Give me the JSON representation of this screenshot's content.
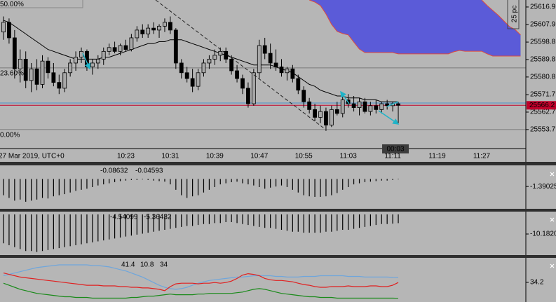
{
  "chart_data": [
    {
      "type": "candlestick",
      "date_label": "27 Mar 2019, UTC+0",
      "categories": [
        null,
        null,
        null,
        null,
        null,
        null,
        null,
        null,
        null,
        null,
        null,
        null,
        null,
        null,
        null,
        null,
        null,
        null,
        null,
        null,
        null,
        null,
        "10:23",
        null,
        null,
        null,
        null,
        null,
        null,
        null,
        "10:31",
        null,
        null,
        null,
        null,
        null,
        null,
        null,
        "10:39",
        null,
        null,
        null,
        null,
        null,
        null,
        null,
        "10:47",
        null,
        null,
        null,
        null,
        null,
        null,
        null,
        "10:55",
        null,
        null,
        null,
        null,
        null,
        null,
        null,
        "11:03",
        null,
        null,
        null,
        null,
        null,
        null,
        null,
        "11:11",
        null,
        null,
        null,
        null,
        null,
        null,
        null,
        "11:19",
        null,
        null,
        null,
        null,
        null,
        null,
        null,
        "11:27",
        null,
        null,
        null,
        null,
        null,
        null,
        null
      ],
      "open": [
        25604,
        25609,
        25601,
        25585,
        25590,
        25579,
        25585,
        25577,
        25589,
        25583,
        25578,
        25575,
        25583,
        25588,
        25591,
        25594,
        25586,
        25588,
        25590,
        25594,
        25596,
        25594,
        25597,
        25595,
        25601,
        25605,
        25603,
        25606,
        25605,
        25607,
        25609,
        25605,
        25588,
        25583,
        25580,
        25576,
        25583,
        25588,
        25590,
        25592,
        25594,
        25590,
        25584,
        25580,
        25575,
        25567,
        25583,
        25597,
        25593,
        25588,
        25586,
        25583,
        25585,
        25580,
        25574,
        25568,
        25564,
        25560,
        25563,
        25556,
        25564,
        25562,
        25569,
        25567,
        25565,
        25568,
        25563,
        25566,
        25564,
        25567,
        25566,
        25567,
        null,
        null,
        null,
        null,
        null,
        null,
        null,
        null,
        null,
        null,
        null,
        null,
        null,
        null,
        null,
        null,
        null,
        null,
        null,
        null,
        null,
        null
      ],
      "high": [
        25612,
        25611,
        25605,
        25595,
        25594,
        25588,
        25590,
        25592,
        25591,
        25588,
        25582,
        25585,
        25590,
        25594,
        25596,
        25595,
        25590,
        25592,
        25596,
        25598,
        25599,
        25598,
        25600,
        25603,
        25607,
        25608,
        25608,
        25609,
        25608,
        25611,
        25612,
        25606,
        25590,
        25586,
        25585,
        25585,
        25590,
        25592,
        25595,
        25596,
        25596,
        25592,
        25587,
        25582,
        25578,
        25585,
        25600,
        25601,
        25598,
        25595,
        25590,
        25586,
        25587,
        25582,
        25576,
        25570,
        25567,
        25566,
        25565,
        25566,
        25568,
        25572,
        25572,
        25571,
        25570,
        25570,
        25568,
        25569,
        25568,
        25569,
        25568,
        25568,
        null,
        null,
        null,
        null,
        null,
        null,
        null,
        null,
        null,
        null,
        null,
        null,
        null,
        null,
        null,
        null,
        null,
        null,
        null,
        null,
        null,
        null
      ],
      "low": [
        25600,
        25598,
        25580,
        25578,
        25575,
        25573,
        25574,
        25575,
        25580,
        25576,
        25572,
        25573,
        25581,
        25584,
        25588,
        25584,
        25582,
        25585,
        25587,
        25592,
        25593,
        25592,
        25594,
        25594,
        25599,
        25601,
        25601,
        25603,
        25601,
        25604,
        25603,
        25585,
        25580,
        25578,
        25573,
        25574,
        25581,
        25585,
        25587,
        25589,
        25588,
        25582,
        25578,
        25572,
        25565,
        25566,
        25580,
        25590,
        25585,
        25584,
        25581,
        25579,
        25578,
        25572,
        25565,
        25562,
        25558,
        25557,
        25553,
        25555,
        25561,
        25560,
        25565,
        25563,
        25561,
        25562,
        25561,
        25562,
        25562,
        25564,
        25563,
        25557,
        null,
        null,
        null,
        null,
        null,
        null,
        null,
        null,
        null,
        null,
        null,
        null,
        null,
        null,
        null,
        null,
        null,
        null,
        null,
        null,
        null,
        null
      ],
      "close": [
        25609,
        25601,
        25585,
        25590,
        25579,
        25585,
        25577,
        25589,
        25583,
        25578,
        25575,
        25583,
        25588,
        25591,
        25594,
        25586,
        25588,
        25590,
        25594,
        25596,
        25594,
        25597,
        25595,
        25601,
        25605,
        25603,
        25606,
        25605,
        25607,
        25609,
        25605,
        25588,
        25583,
        25580,
        25576,
        25583,
        25588,
        25590,
        25592,
        25594,
        25590,
        25584,
        25580,
        25575,
        25567,
        25583,
        25597,
        25593,
        25588,
        25586,
        25583,
        25585,
        25580,
        25574,
        25568,
        25564,
        25560,
        25563,
        25556,
        25564,
        25562,
        25569,
        25567,
        25565,
        25568,
        25563,
        25566,
        25564,
        25567,
        25566,
        25567,
        25566.2,
        null,
        null,
        null,
        null,
        null,
        null,
        null,
        null,
        null,
        null,
        null,
        null,
        null,
        null,
        null,
        null,
        null,
        null,
        null,
        null,
        null,
        null
      ],
      "up_color": "#a8a8a8",
      "down_color": "#000000",
      "ma": {
        "color": "#000000",
        "values": [
          25610,
          25609,
          25607,
          25605,
          25603,
          25601,
          25599,
          25597,
          25595,
          25594,
          25593,
          25592,
          25591,
          25590,
          25590,
          25590,
          25590,
          25590,
          25591,
          25591,
          25592,
          25593,
          25594,
          25595,
          25596,
          25597,
          25598,
          25598,
          25599,
          25599,
          25600,
          25600,
          25600,
          25599,
          25598,
          25597,
          25596,
          25595,
          25594,
          25593,
          25592,
          25591,
          25590,
          25589,
          25588,
          25587,
          25587,
          25587,
          25587,
          25586,
          25585,
          25584,
          25583,
          25581,
          25579,
          25577,
          25576,
          25574,
          25573,
          25572,
          25571,
          25571,
          25570,
          25570,
          25570,
          25569,
          25569,
          25569,
          25568,
          25568,
          25568,
          25568,
          null,
          null,
          null,
          null,
          null,
          null,
          null,
          null,
          null,
          null,
          null,
          null,
          null,
          null,
          null,
          null,
          null,
          null,
          null,
          null,
          null,
          null
        ]
      },
      "cloud": {
        "color": "#5b5bd8",
        "edge_color": "#e04a3c",
        "upper": [
          null,
          null,
          null,
          null,
          null,
          null,
          null,
          null,
          null,
          null,
          null,
          null,
          null,
          null,
          null,
          null,
          null,
          null,
          null,
          null,
          null,
          null,
          null,
          null,
          null,
          null,
          null,
          null,
          null,
          null,
          null,
          null,
          null,
          null,
          null,
          null,
          null,
          null,
          null,
          null,
          null,
          null,
          null,
          null,
          null,
          null,
          null,
          null,
          null,
          null,
          null,
          null,
          null,
          null,
          null,
          null,
          null,
          null,
          null,
          null,
          null,
          null,
          null,
          null,
          null,
          null,
          null,
          null,
          null,
          null,
          null,
          null,
          null,
          null,
          null,
          null,
          null,
          null,
          null,
          null,
          null,
          null,
          null,
          null,
          null,
          null,
          25620.5,
          25617.6,
          25615.1,
          25612.6,
          25609.7,
          25606.8,
          25605.3,
          25602.5
        ],
        "lower": [
          null,
          null,
          null,
          null,
          null,
          null,
          null,
          null,
          null,
          null,
          null,
          null,
          null,
          null,
          null,
          null,
          null,
          null,
          null,
          null,
          null,
          null,
          null,
          null,
          null,
          null,
          null,
          null,
          null,
          null,
          null,
          null,
          null,
          null,
          null,
          null,
          null,
          null,
          null,
          null,
          null,
          null,
          null,
          null,
          null,
          null,
          null,
          null,
          null,
          null,
          null,
          null,
          null,
          null,
          null,
          25620.5,
          25619.4,
          25617.6,
          25613.3,
          25607.9,
          25604.3,
          25603.2,
          25602.5,
          25598.8,
          25595.2,
          25593.4,
          25593.4,
          25593.4,
          25593.4,
          25593.4,
          25593.4,
          25592.7,
          25592.7,
          25592.7,
          25592.7,
          25592.7,
          25592.7,
          25592.7,
          25592.7,
          25592.7,
          25592.7,
          25593.8,
          25594.5,
          25594.1,
          25594.1,
          25594.1,
          25594.1,
          25592.7,
          25591.6,
          25591.6,
          25591.6,
          25591.6,
          25591.6,
          25591.6
        ]
      },
      "ylim": [
        25543.9,
        25620.5
      ],
      "yticks": [
        25553.7,
        25562.7,
        25571.7,
        25580.8,
        25589.8,
        25598.8,
        25607.9,
        25616.9
      ],
      "fib_levels": [
        {
          "text": "50.00%",
          "price": 25621.1
        },
        {
          "text": "23.60%",
          "price": 25585.5
        },
        {
          "text": "0.00%",
          "price": 25553.7
        }
      ],
      "last_price": 25566.2,
      "last_price_color": "#c0002a",
      "ask_price": 25567.4,
      "ask_color": "#4a90c8",
      "timer": "00:03",
      "range_label": "25 pc"
    },
    {
      "type": "bar",
      "color": "#000000",
      "values": [
        -3,
        -3.5,
        -4,
        -3.8,
        -4.2,
        -4,
        -3.8,
        -3.5,
        -3.6,
        -3.2,
        -3,
        -2.8,
        -2.5,
        -2.2,
        -2,
        -1.8,
        -1.5,
        -1.2,
        -1,
        -0.8,
        -0.6,
        -0.4,
        -0.3,
        -0.2,
        -0.2,
        -0.1,
        -0.2,
        -0.3,
        -0.4,
        -0.5,
        -1,
        -2,
        -3,
        -3.5,
        -3.2,
        -3,
        -2.5,
        -2,
        -1.5,
        -1,
        -0.8,
        -0.6,
        -0.5,
        -0.8,
        -1,
        -1.2,
        -1.5,
        -1.8,
        -1.6,
        -1.4,
        -1.2,
        -1.5,
        -2,
        -2.5,
        -3,
        -3.2,
        -3.3,
        -3.3,
        -3.2,
        -3,
        -2.6,
        -2,
        -1.5,
        -1,
        -0.8,
        -0.6,
        -0.5,
        -0.4,
        -0.3,
        -0.3,
        -0.2,
        -0.08632
      ],
      "signal": -0.04593,
      "signal_color": "#e02020",
      "ylim": [
        -5.5,
        2.5
      ],
      "yticks": [
        -1.39025
      ]
    },
    {
      "type": "bar",
      "color": "#000000",
      "values": [
        -15,
        -16,
        -17,
        -18,
        -19,
        -19,
        -19.5,
        -19,
        -18.5,
        -18,
        -17.5,
        -17,
        -16.5,
        -16,
        -15.5,
        -15,
        -14.5,
        -14,
        -13.5,
        -13,
        -12.5,
        -12,
        -11.5,
        -11,
        -10.5,
        -10,
        -9.5,
        -9,
        -8.5,
        -8,
        -7.5,
        -7,
        -6.5,
        -6,
        -6,
        -5.5,
        -5,
        -5,
        -4.5,
        -4.5,
        -4,
        -4,
        -4.5,
        -5,
        -5.5,
        -6,
        -6.5,
        -7,
        -7,
        -7.5,
        -8,
        -8.5,
        -9,
        -9,
        -9.5,
        -9.5,
        -9.5,
        -9.5,
        -9,
        -9,
        -8.5,
        -8,
        -8,
        -7.5,
        -7,
        -6.5,
        -6,
        -5.5,
        -5,
        -5,
        -4.8,
        -4.54099
      ],
      "signal": -5.36432,
      "signal_color": "#e02020",
      "ylim": [
        -21.1,
        1.45
      ],
      "yticks": [
        {
          "value": -10.182,
          "label": "-10.1820"
        }
      ]
    },
    {
      "type": "line",
      "series": [
        {
          "color": "#6fa6dc",
          "values": [
            44,
            46,
            48,
            50,
            52,
            54,
            56,
            57,
            58,
            59,
            60,
            60,
            60,
            60,
            60,
            60,
            59,
            59,
            58,
            57,
            55,
            53,
            51,
            48,
            45,
            42,
            38,
            34,
            30,
            27,
            25,
            24,
            25,
            27,
            30,
            33,
            35,
            37,
            38,
            39,
            40,
            41,
            42,
            42,
            43,
            44,
            44,
            44,
            44,
            43,
            43,
            42,
            42,
            42,
            43,
            43,
            43,
            44,
            44,
            44,
            44,
            44,
            43,
            43,
            43,
            42,
            42,
            42,
            42,
            42,
            41.5,
            41.4
          ]
        },
        {
          "color": "#1a8a1a",
          "values": [
            33,
            30,
            27,
            24,
            22,
            20,
            18,
            17,
            16,
            15,
            14,
            13,
            13,
            12,
            12,
            12,
            11,
            11,
            11,
            11,
            11,
            11,
            11,
            12,
            12,
            13,
            14,
            14,
            15,
            16,
            17,
            16,
            16,
            16,
            16,
            17,
            17,
            18,
            18,
            18,
            18,
            18,
            19,
            20,
            22,
            24,
            25,
            24,
            22,
            20,
            18,
            17,
            16,
            15,
            14,
            13,
            13,
            12,
            12,
            12,
            11,
            11,
            11,
            11,
            11,
            11,
            11,
            11,
            11,
            11,
            11,
            10.8
          ]
        },
        {
          "color": "#e02020",
          "values": [
            48,
            46,
            44,
            42,
            41,
            40,
            39,
            38,
            37,
            36,
            35,
            34,
            33,
            32,
            31,
            30,
            30,
            30,
            29,
            29,
            29,
            28,
            28,
            27,
            27,
            26,
            26,
            25,
            24,
            22,
            28,
            32,
            33,
            33,
            33,
            32,
            33,
            33,
            34,
            33,
            34,
            36,
            40,
            45,
            47,
            46,
            44,
            40,
            38,
            37,
            37,
            36,
            35,
            33,
            31,
            30,
            28,
            27,
            27,
            28,
            28,
            28,
            29,
            28,
            28,
            28,
            29,
            29,
            28,
            28,
            30,
            34
          ]
        }
      ],
      "ylim": [
        5.3,
        70.3
      ],
      "yticks": [
        34.2
      ]
    }
  ]
}
